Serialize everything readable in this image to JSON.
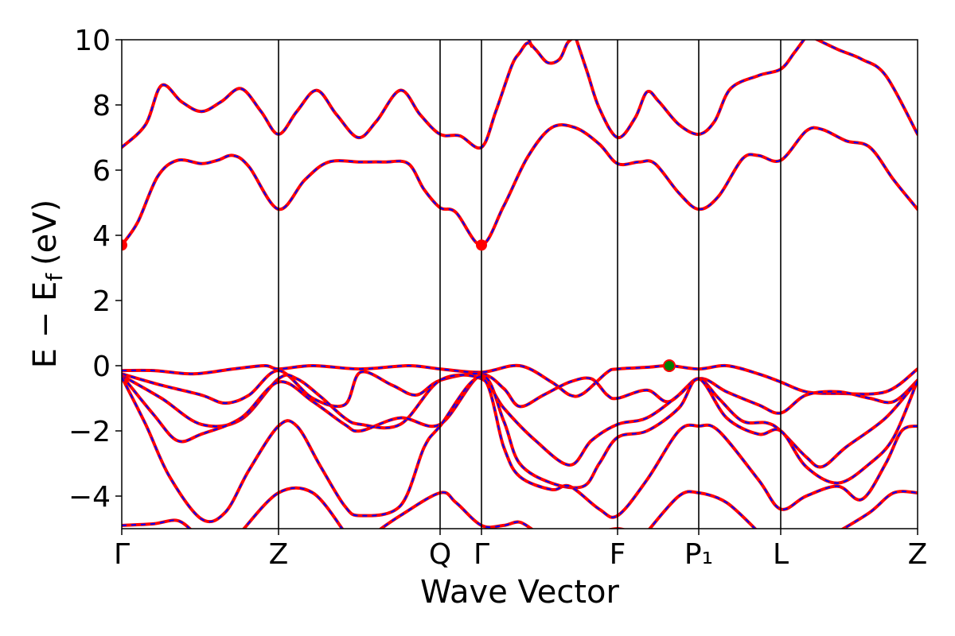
{
  "chart_data": {
    "type": "line",
    "xlabel": "Wave Vector",
    "ylabel": "E − E",
    "ylabel_sub": "f",
    "ylabel_unit": "(eV)",
    "ylim": [
      -5,
      10
    ],
    "xlim": [
      0,
      1
    ],
    "y_ticks": [
      {
        "value": 10,
        "label": "10"
      },
      {
        "value": 8,
        "label": "8"
      },
      {
        "value": 6,
        "label": "6"
      },
      {
        "value": 4,
        "label": "4"
      },
      {
        "value": 2,
        "label": "2"
      },
      {
        "value": 0,
        "label": "0"
      },
      {
        "value": -2,
        "label": "−2"
      },
      {
        "value": -4,
        "label": "−4"
      }
    ],
    "k_points": [
      {
        "label": "Γ",
        "x": 0.0
      },
      {
        "label": "Z",
        "x": 0.197
      },
      {
        "label": "Q",
        "x": 0.4
      },
      {
        "label": "Γ",
        "x": 0.452
      },
      {
        "label": "F",
        "x": 0.623
      },
      {
        "label": "P₁",
        "x": 0.725
      },
      {
        "label": "L",
        "x": 0.828
      },
      {
        "label": "Z",
        "x": 1.0
      }
    ],
    "colors": {
      "band_solid": "#ff0000",
      "band_dash": "#0000ff",
      "cbm_marker": "#ff0000",
      "vbm_marker": "#008000"
    },
    "markers": [
      {
        "name": "cbm",
        "x": 0.0,
        "y": 3.7,
        "color": "#ff0000"
      },
      {
        "name": "cbm",
        "x": 0.452,
        "y": 3.7,
        "color": "#ff0000"
      },
      {
        "name": "vbm",
        "x": 0.688,
        "y": 0.0,
        "color": "#008000"
      }
    ],
    "series": [
      {
        "values": [
          [
            0,
            6.7
          ],
          [
            0.03,
            7.4
          ],
          [
            0.05,
            8.6
          ],
          [
            0.075,
            8.1
          ],
          [
            0.1,
            7.8
          ],
          [
            0.125,
            8.1
          ],
          [
            0.15,
            8.5
          ],
          [
            0.175,
            7.8
          ],
          [
            0.197,
            7.1
          ],
          [
            0.22,
            7.8
          ],
          [
            0.245,
            8.45
          ],
          [
            0.27,
            7.7
          ],
          [
            0.297,
            7.0
          ],
          [
            0.32,
            7.5
          ],
          [
            0.35,
            8.45
          ],
          [
            0.375,
            7.7
          ],
          [
            0.4,
            7.1
          ],
          [
            0.425,
            7.05
          ],
          [
            0.452,
            6.7
          ],
          [
            0.47,
            7.8
          ],
          [
            0.49,
            9.2
          ],
          [
            0.5,
            9.6
          ],
          [
            0.51,
            9.9
          ],
          [
            0.52,
            9.7
          ],
          [
            0.535,
            9.3
          ],
          [
            0.55,
            9.4
          ],
          [
            0.56,
            9.9
          ],
          [
            0.57,
            10.1
          ]
        ]
      },
      {
        "values": [
          [
            0.5,
            10.2
          ],
          [
            0.51,
            10.05
          ],
          [
            0.515,
            9.8
          ]
        ]
      },
      {
        "values": [
          [
            0.57,
            10.1
          ],
          [
            0.585,
            9.0
          ],
          [
            0.6,
            7.9
          ],
          [
            0.623,
            7.0
          ],
          [
            0.645,
            7.6
          ],
          [
            0.66,
            8.4
          ],
          [
            0.675,
            8.1
          ],
          [
            0.7,
            7.4
          ],
          [
            0.725,
            7.1
          ],
          [
            0.745,
            7.5
          ],
          [
            0.765,
            8.5
          ],
          [
            0.8,
            8.9
          ],
          [
            0.828,
            9.1
          ],
          [
            0.845,
            9.6
          ],
          [
            0.86,
            10.1
          ]
        ]
      },
      {
        "values": [
          [
            0.87,
            10.05
          ],
          [
            0.9,
            9.7
          ],
          [
            0.93,
            9.4
          ],
          [
            0.96,
            8.9
          ],
          [
            1.0,
            7.1
          ]
        ]
      },
      {
        "values": [
          [
            0,
            3.7
          ],
          [
            0.02,
            4.4
          ],
          [
            0.045,
            5.8
          ],
          [
            0.07,
            6.3
          ],
          [
            0.1,
            6.2
          ],
          [
            0.12,
            6.3
          ],
          [
            0.14,
            6.45
          ],
          [
            0.16,
            6.1
          ],
          [
            0.197,
            4.8
          ],
          [
            0.23,
            5.7
          ],
          [
            0.26,
            6.25
          ],
          [
            0.3,
            6.25
          ],
          [
            0.33,
            6.25
          ],
          [
            0.36,
            6.2
          ],
          [
            0.38,
            5.4
          ],
          [
            0.4,
            4.85
          ],
          [
            0.42,
            4.7
          ],
          [
            0.452,
            3.7
          ],
          [
            0.48,
            4.9
          ],
          [
            0.51,
            6.4
          ],
          [
            0.54,
            7.3
          ],
          [
            0.57,
            7.3
          ],
          [
            0.6,
            6.8
          ],
          [
            0.623,
            6.2
          ],
          [
            0.65,
            6.25
          ],
          [
            0.67,
            6.2
          ],
          [
            0.7,
            5.3
          ],
          [
            0.725,
            4.8
          ],
          [
            0.75,
            5.2
          ],
          [
            0.78,
            6.35
          ],
          [
            0.8,
            6.45
          ],
          [
            0.828,
            6.3
          ],
          [
            0.86,
            7.2
          ],
          [
            0.88,
            7.25
          ],
          [
            0.91,
            6.9
          ],
          [
            0.94,
            6.7
          ],
          [
            0.97,
            5.7
          ],
          [
            1.0,
            4.8
          ]
        ]
      },
      {
        "values": [
          [
            0,
            -0.15
          ],
          [
            0.04,
            -0.15
          ],
          [
            0.09,
            -0.25
          ],
          [
            0.14,
            -0.1
          ],
          [
            0.18,
            0.0
          ],
          [
            0.197,
            -0.1
          ],
          [
            0.24,
            0.0
          ],
          [
            0.3,
            -0.1
          ],
          [
            0.36,
            0.0
          ],
          [
            0.4,
            -0.1
          ],
          [
            0.452,
            -0.2
          ],
          [
            0.5,
            0.0
          ],
          [
            0.54,
            -0.5
          ],
          [
            0.563,
            -0.9
          ],
          [
            0.58,
            -0.85
          ],
          [
            0.61,
            -0.2
          ],
          [
            0.623,
            -0.1
          ],
          [
            0.66,
            -0.05
          ],
          [
            0.688,
            0.0
          ],
          [
            0.725,
            -0.1
          ],
          [
            0.76,
            0.0
          ],
          [
            0.8,
            -0.25
          ],
          [
            0.828,
            -0.5
          ],
          [
            0.86,
            -0.8
          ],
          [
            0.9,
            -0.85
          ],
          [
            0.96,
            -0.8
          ],
          [
            1.0,
            -0.1
          ]
        ]
      },
      {
        "values": [
          [
            0,
            -0.25
          ],
          [
            0.05,
            -0.6
          ],
          [
            0.1,
            -0.9
          ],
          [
            0.13,
            -1.15
          ],
          [
            0.16,
            -0.9
          ],
          [
            0.197,
            -0.15
          ],
          [
            0.24,
            -1.0
          ],
          [
            0.28,
            -1.2
          ],
          [
            0.3,
            -0.2
          ],
          [
            0.34,
            -0.6
          ],
          [
            0.37,
            -0.9
          ],
          [
            0.4,
            -0.45
          ],
          [
            0.452,
            -0.25
          ],
          [
            0.48,
            -0.7
          ],
          [
            0.5,
            -1.25
          ],
          [
            0.53,
            -0.9
          ],
          [
            0.563,
            -0.5
          ],
          [
            0.59,
            -0.4
          ],
          [
            0.61,
            -0.9
          ],
          [
            0.623,
            -1.0
          ],
          [
            0.66,
            -0.75
          ],
          [
            0.688,
            -1.1
          ],
          [
            0.725,
            -0.4
          ],
          [
            0.76,
            -0.8
          ],
          [
            0.8,
            -1.2
          ],
          [
            0.828,
            -1.45
          ],
          [
            0.86,
            -0.9
          ],
          [
            0.9,
            -0.8
          ],
          [
            0.94,
            -1.0
          ],
          [
            0.97,
            -1.1
          ],
          [
            1.0,
            -0.45
          ]
        ]
      },
      {
        "values": [
          [
            0,
            -0.3
          ],
          [
            0.05,
            -1.0
          ],
          [
            0.1,
            -1.8
          ],
          [
            0.15,
            -1.65
          ],
          [
            0.197,
            -0.4
          ],
          [
            0.22,
            -0.4
          ],
          [
            0.25,
            -0.95
          ],
          [
            0.28,
            -1.6
          ],
          [
            0.3,
            -1.8
          ],
          [
            0.35,
            -1.8
          ],
          [
            0.4,
            -0.45
          ],
          [
            0.452,
            -0.4
          ],
          [
            0.48,
            -1.3
          ],
          [
            0.52,
            -2.3
          ],
          [
            0.563,
            -3.05
          ],
          [
            0.59,
            -2.3
          ],
          [
            0.623,
            -1.8
          ],
          [
            0.66,
            -1.6
          ],
          [
            0.7,
            -0.9
          ],
          [
            0.725,
            -0.4
          ],
          [
            0.75,
            -1.0
          ],
          [
            0.78,
            -1.7
          ],
          [
            0.81,
            -1.75
          ],
          [
            0.828,
            -2.0
          ],
          [
            0.86,
            -2.8
          ],
          [
            0.88,
            -3.1
          ],
          [
            0.91,
            -2.5
          ],
          [
            0.96,
            -1.6
          ],
          [
            1.0,
            -0.45
          ]
        ]
      },
      {
        "values": [
          [
            0,
            -0.3
          ],
          [
            0.04,
            -1.5
          ],
          [
            0.07,
            -2.3
          ],
          [
            0.1,
            -2.1
          ],
          [
            0.15,
            -1.6
          ],
          [
            0.197,
            -0.5
          ],
          [
            0.24,
            -1.1
          ],
          [
            0.28,
            -1.8
          ],
          [
            0.3,
            -2.0
          ],
          [
            0.35,
            -1.6
          ],
          [
            0.4,
            -1.8
          ],
          [
            0.452,
            -0.3
          ],
          [
            0.48,
            -1.7
          ],
          [
            0.5,
            -3.0
          ],
          [
            0.54,
            -3.6
          ],
          [
            0.58,
            -3.7
          ],
          [
            0.6,
            -3.0
          ],
          [
            0.623,
            -2.2
          ],
          [
            0.66,
            -2.0
          ],
          [
            0.7,
            -1.3
          ],
          [
            0.725,
            -0.4
          ],
          [
            0.76,
            -1.6
          ],
          [
            0.8,
            -2.1
          ],
          [
            0.828,
            -2.0
          ],
          [
            0.86,
            -3.1
          ],
          [
            0.9,
            -3.6
          ],
          [
            0.94,
            -3.0
          ],
          [
            0.97,
            -2.2
          ],
          [
            1.0,
            -0.45
          ]
        ]
      },
      {
        "values": [
          [
            0,
            -0.35
          ],
          [
            0.03,
            -1.8
          ],
          [
            0.06,
            -3.4
          ],
          [
            0.1,
            -4.7
          ],
          [
            0.13,
            -4.5
          ],
          [
            0.16,
            -3.2
          ],
          [
            0.197,
            -1.85
          ],
          [
            0.22,
            -1.85
          ],
          [
            0.25,
            -3.1
          ],
          [
            0.28,
            -4.3
          ],
          [
            0.3,
            -4.6
          ],
          [
            0.35,
            -4.3
          ],
          [
            0.38,
            -2.5
          ],
          [
            0.4,
            -1.85
          ],
          [
            0.452,
            -0.35
          ],
          [
            0.48,
            -2.5
          ],
          [
            0.5,
            -3.4
          ],
          [
            0.54,
            -3.8
          ],
          [
            0.563,
            -3.7
          ],
          [
            0.6,
            -4.4
          ],
          [
            0.623,
            -4.6
          ],
          [
            0.66,
            -3.5
          ],
          [
            0.7,
            -2.0
          ],
          [
            0.725,
            -1.85
          ],
          [
            0.75,
            -2.0
          ],
          [
            0.8,
            -3.5
          ],
          [
            0.828,
            -4.4
          ],
          [
            0.86,
            -4.0
          ],
          [
            0.9,
            -3.7
          ],
          [
            0.93,
            -4.1
          ],
          [
            0.96,
            -3.0
          ],
          [
            0.98,
            -2.0
          ],
          [
            1.0,
            -1.85
          ]
        ]
      },
      {
        "values": [
          [
            0,
            -4.9
          ],
          [
            0.04,
            -4.85
          ],
          [
            0.07,
            -4.75
          ],
          [
            0.09,
            -5.1
          ]
        ]
      },
      {
        "values": [
          [
            0.15,
            -5.1
          ],
          [
            0.197,
            -3.9
          ],
          [
            0.24,
            -3.9
          ],
          [
            0.28,
            -5.1
          ]
        ]
      },
      {
        "values": [
          [
            0.32,
            -5.1
          ],
          [
            0.35,
            -4.6
          ],
          [
            0.4,
            -3.9
          ],
          [
            0.42,
            -4.2
          ],
          [
            0.452,
            -4.9
          ],
          [
            0.48,
            -4.9
          ],
          [
            0.5,
            -4.8
          ],
          [
            0.52,
            -5.1
          ]
        ]
      },
      {
        "values": [
          [
            0.6,
            -5.1
          ],
          [
            0.623,
            -5.0
          ],
          [
            0.64,
            -5.1
          ]
        ]
      },
      {
        "values": [
          [
            0.66,
            -5.1
          ],
          [
            0.7,
            -4.0
          ],
          [
            0.725,
            -3.9
          ],
          [
            0.76,
            -4.2
          ],
          [
            0.8,
            -5.1
          ]
        ]
      },
      {
        "values": [
          [
            0.9,
            -5.1
          ],
          [
            0.94,
            -4.5
          ],
          [
            0.97,
            -3.9
          ],
          [
            1.0,
            -3.9
          ]
        ]
      }
    ]
  }
}
